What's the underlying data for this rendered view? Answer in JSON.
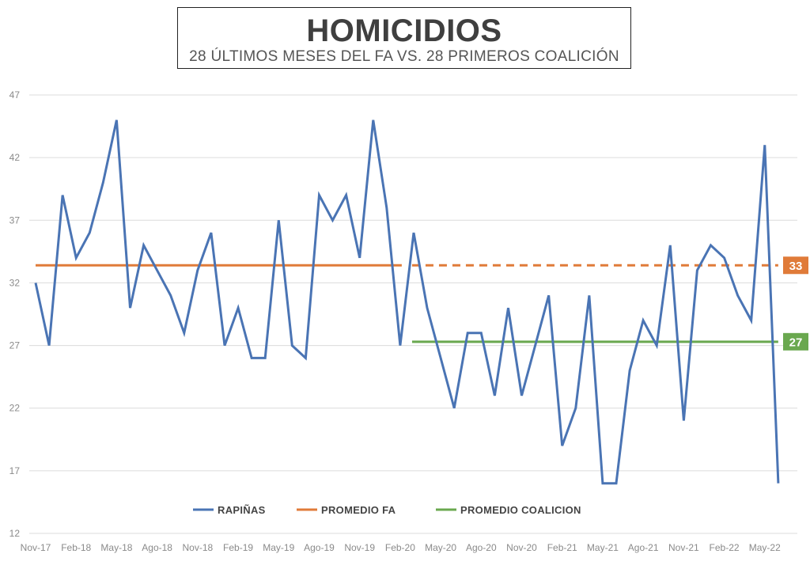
{
  "header": {
    "title": "HOMICIDIOS",
    "subtitle": "28 ÚLTIMOS MESES DEL FA VS. 28 PRIMEROS COALICIÓN"
  },
  "colors": {
    "series": "#4a74b4",
    "fa": "#e07b39",
    "coalicion": "#6aa84f",
    "grid": "#dcdcdc"
  },
  "chart_data": {
    "type": "line",
    "title": "HOMICIDIOS",
    "subtitle": "28 ÚLTIMOS MESES DEL FA VS. 28 PRIMEROS COALICIÓN",
    "x_tick_labels": [
      "Nov-17",
      "Feb-18",
      "May-18",
      "Ago-18",
      "Nov-18",
      "Feb-19",
      "May-19",
      "Ago-19",
      "Nov-19",
      "Feb-20",
      "May-20",
      "Ago-20",
      "Nov-20",
      "Feb-21",
      "May-21",
      "Ago-21",
      "Nov-21",
      "Feb-22",
      "May-22"
    ],
    "x_start": "Nov-17",
    "y_ticks": [
      12,
      17,
      22,
      27,
      32,
      37,
      42,
      47
    ],
    "ylim": [
      12,
      47
    ],
    "grid": true,
    "legend_position": "bottom",
    "series": [
      {
        "name": "RAPIÑAS",
        "style": "solid",
        "values": [
          32,
          27,
          39,
          34,
          36,
          40,
          45,
          30,
          35,
          33,
          31,
          28,
          33,
          36,
          27,
          30,
          26,
          26,
          37,
          27,
          26,
          39,
          37,
          39,
          34,
          45,
          38,
          27,
          36,
          30,
          26,
          22,
          28,
          28,
          23,
          30,
          23,
          27,
          31,
          19,
          22,
          31,
          16,
          16,
          25,
          29,
          27,
          35,
          21,
          33,
          35,
          34,
          31,
          29,
          43,
          16
        ]
      },
      {
        "name": "PROMEDIO FA",
        "value": 33.4,
        "solid_range": [
          "Nov-17",
          "Feb-20"
        ],
        "dashed_range": [
          "Mar-20",
          "Jun-22"
        ],
        "label": "33"
      },
      {
        "name": "PROMEDIO COALICION",
        "value": 27.3,
        "range": [
          "Mar-20",
          "Jun-22"
        ],
        "label": "27"
      }
    ]
  }
}
